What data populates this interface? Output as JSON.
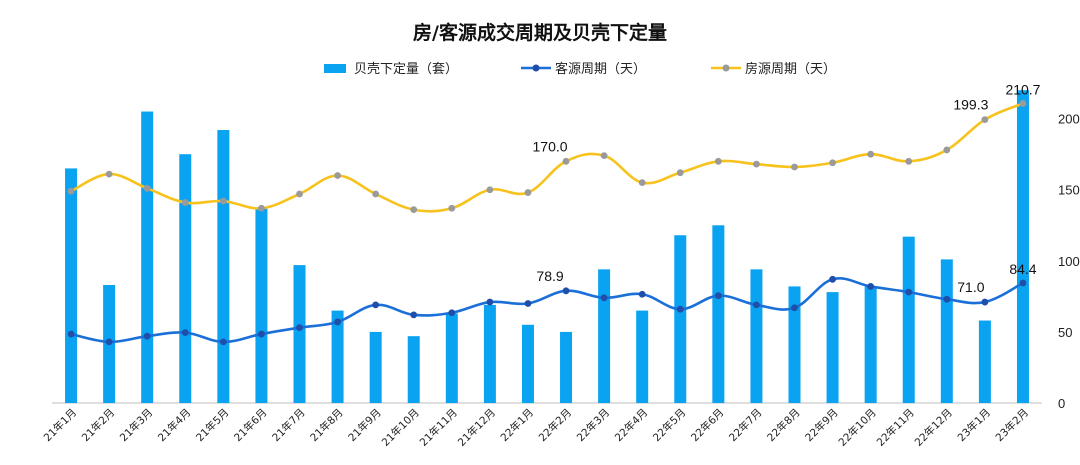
{
  "chart_data": {
    "type": "bar+line",
    "title": "房/客源成交周期及贝壳下定量",
    "categories": [
      "21年1月",
      "21年2月",
      "21年3月",
      "21年4月",
      "21年5月",
      "21年6月",
      "21年7月",
      "21年8月",
      "21年9月",
      "21年10月",
      "21年11月",
      "21年12月",
      "22年1月",
      "22年2月",
      "22年3月",
      "22年4月",
      "22年5月",
      "22年6月",
      "22年7月",
      "22年8月",
      "22年9月",
      "22年10月",
      "22年11月",
      "22年12月",
      "23年1月",
      "23年2月"
    ],
    "legend_position": "top",
    "right_axis": {
      "ylim": [
        0,
        230
      ],
      "ticks": [
        "0",
        "50",
        "100",
        "150",
        "200"
      ]
    },
    "series": [
      {
        "name": "贝壳下定量（套）",
        "kind": "bar",
        "color": "#0aa3f2",
        "values_on_right_axis_scale": [
          165,
          83,
          205,
          175,
          192,
          137,
          97,
          65,
          50,
          47,
          63,
          69,
          55,
          50,
          94,
          65,
          118,
          125,
          94,
          82,
          78,
          82,
          117,
          101,
          58,
          220
        ]
      },
      {
        "name": "客源周期（天）",
        "kind": "line",
        "color": "#1a6fd8",
        "marker_color": "#1f4fa8",
        "values": [
          48.5,
          43,
          47,
          49.5,
          43,
          48.5,
          53,
          57,
          69,
          62,
          63.5,
          71,
          70,
          78.9,
          74,
          76.5,
          66,
          75.5,
          69,
          67,
          87,
          82,
          78,
          73,
          71.0,
          84.4
        ]
      },
      {
        "name": "房源周期（天）",
        "kind": "line",
        "color": "#f7c21b",
        "marker_color": "#9a9a9a",
        "values": [
          149,
          161,
          151,
          141,
          142,
          137,
          147,
          160,
          147,
          136,
          137,
          150,
          148,
          170.0,
          174,
          155,
          162,
          170,
          168,
          166,
          169,
          175,
          170,
          178,
          199.3,
          210.7
        ]
      }
    ],
    "data_labels": [
      {
        "series": 2,
        "index": 13,
        "text": "170.0"
      },
      {
        "series": 2,
        "index": 24,
        "text": "199.3"
      },
      {
        "series": 2,
        "index": 25,
        "text": "210.7"
      },
      {
        "series": 1,
        "index": 13,
        "text": "78.9"
      },
      {
        "series": 1,
        "index": 24,
        "text": "71.0"
      },
      {
        "series": 1,
        "index": 25,
        "text": "84.4"
      }
    ]
  }
}
